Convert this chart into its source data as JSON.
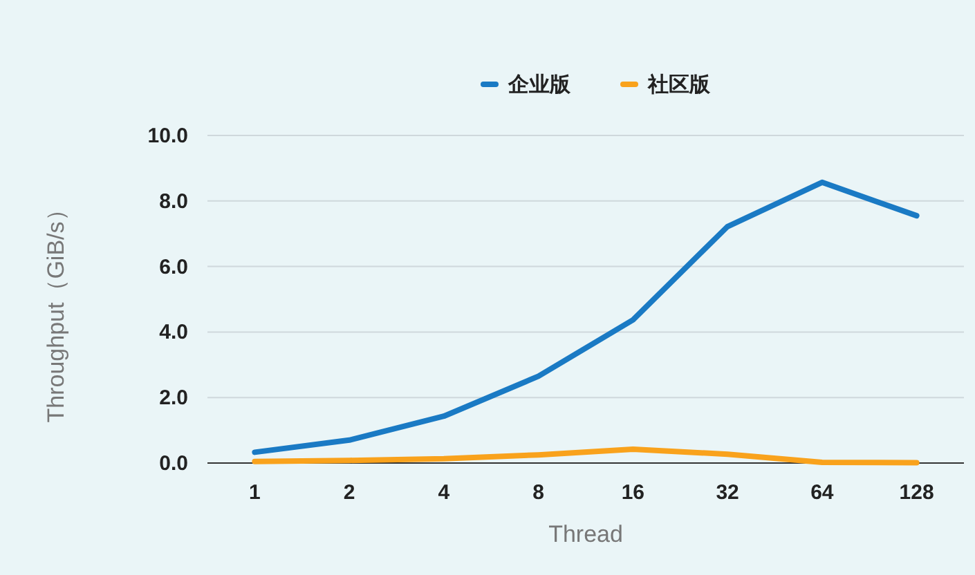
{
  "chart_data": {
    "type": "line",
    "xlabel": "Thread",
    "ylabel": "Throughput（GiB/s）",
    "categories": [
      "1",
      "2",
      "4",
      "8",
      "16",
      "32",
      "64",
      "128"
    ],
    "series": [
      {
        "name": "企业版",
        "color": "#1a7ac4",
        "values": [
          0.33,
          0.7,
          1.43,
          2.65,
          4.37,
          7.22,
          8.57,
          7.55
        ]
      },
      {
        "name": "社区版",
        "color": "#f9a21c",
        "values": [
          0.05,
          0.08,
          0.13,
          0.25,
          0.42,
          0.27,
          0.02,
          0.01
        ]
      }
    ],
    "ylim": [
      0,
      10
    ],
    "yticks": [
      {
        "value": 0,
        "label": "0.0"
      },
      {
        "value": 2,
        "label": "2.0"
      },
      {
        "value": 4,
        "label": "4.0"
      },
      {
        "value": 6,
        "label": "6.0"
      },
      {
        "value": 8,
        "label": "8.0"
      },
      {
        "value": 10,
        "label": "10.0"
      }
    ],
    "grid": "y",
    "legend": "top",
    "marker": "none",
    "line_style": "solid"
  }
}
